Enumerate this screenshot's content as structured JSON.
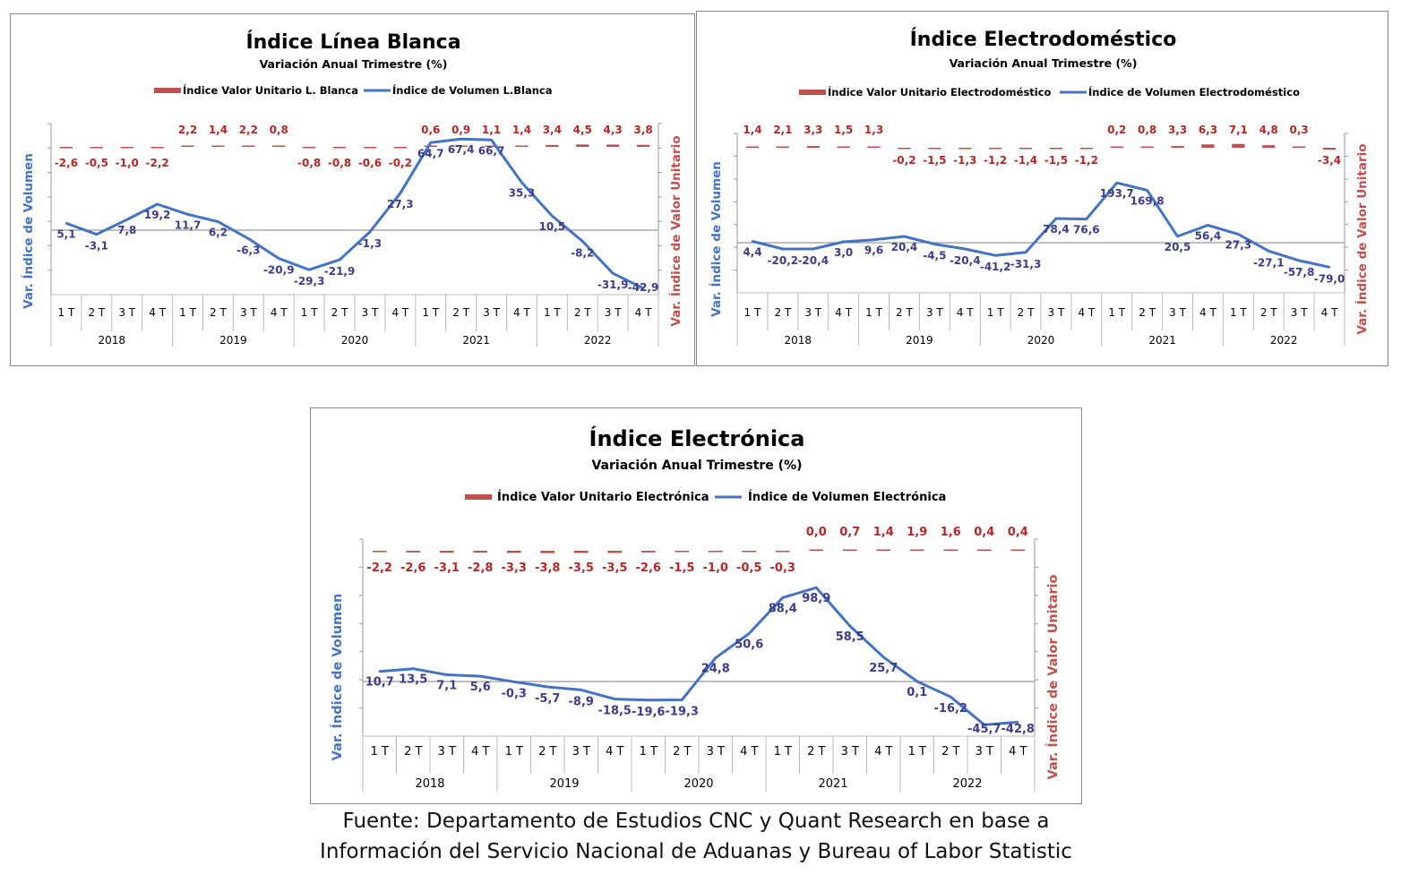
{
  "colors": {
    "volume": "#4472C4",
    "unit_value": "#C0504D",
    "volume_label": "#3C3C8C",
    "unit_label": "#B42828",
    "axis_title_left": "#4472C4",
    "axis_title_right": "#C0504D"
  },
  "chart_data": [
    {
      "type": "line",
      "title": "Índice Línea Blanca",
      "subtitle": "Variación Anual Trimestre  (%)",
      "ylabel": "Var. Índice de Volumen",
      "y2label": "Var. Índice de Valor Unitario",
      "legend": [
        "Índice Valor Unitario L. Blanca",
        "Índice de Volumen L.Blanca"
      ],
      "legend_position": "top",
      "grid": false,
      "quarters": [
        "1 T",
        "2 T",
        "3 T",
        "4 T",
        "1 T",
        "2 T",
        "3 T",
        "4 T",
        "1 T",
        "2 T",
        "3 T",
        "4 T",
        "1 T",
        "2 T",
        "3 T",
        "4 T",
        "1 T",
        "2 T",
        "3 T",
        "4 T"
      ],
      "years": [
        "2018",
        "2019",
        "2020",
        "2021",
        "2022"
      ],
      "series": [
        {
          "name": "Índice de Volumen L.Blanca",
          "axis": "left",
          "values": [
            5.1,
            -3.1,
            7.8,
            19.2,
            11.7,
            6.2,
            -6.3,
            -20.9,
            -29.3,
            -21.9,
            -1.3,
            27.3,
            64.7,
            67.4,
            66.7,
            35.3,
            10.5,
            -8.2,
            -31.9,
            -42.9
          ],
          "labels": [
            "5,1",
            "-3,1",
            "7,8",
            "19,2",
            "11,7",
            "6,2",
            "-6,3",
            "-20,9",
            "-29,3",
            "-21,9",
            "-1,3",
            "27,3",
            "64,7",
            "67,4",
            "66,7",
            "35,3",
            "10,5",
            "-8,2",
            "-31,9",
            "-42,9"
          ]
        },
        {
          "name": "Índice Valor Unitario L. Blanca",
          "axis": "right",
          "values": [
            -2.6,
            -0.5,
            -1.0,
            -2.2,
            2.2,
            1.4,
            2.2,
            0.8,
            -0.8,
            -0.8,
            -0.6,
            -0.2,
            0.6,
            0.9,
            1.1,
            1.4,
            3.4,
            4.5,
            4.3,
            3.8
          ],
          "labels": [
            "-2,6",
            "-0,5",
            "-1,0",
            "-2,2",
            "2,2",
            "1,4",
            "2,2",
            "0,8",
            "-0,8",
            "-0,8",
            "-0,6",
            "-0,2",
            "0,6",
            "0,9",
            "1,1",
            "1,4",
            "3,4",
            "4,5",
            "4,3",
            "3,8"
          ]
        }
      ]
    },
    {
      "type": "line",
      "title": "Índice Electrodoméstico",
      "subtitle": "Variación Anual Trimestre  (%)",
      "ylabel": "Var. Índice de Volumen",
      "y2label": "Var. Índice de Valor Unitario",
      "legend": [
        "Índice Valor Unitario Electrodoméstico",
        "Índice de Volumen Electrodoméstico"
      ],
      "legend_position": "top",
      "grid": false,
      "quarters": [
        "1 T",
        "2 T",
        "3 T",
        "4 T",
        "1 T",
        "2 T",
        "3 T",
        "4 T",
        "1 T",
        "2 T",
        "3 T",
        "4 T",
        "1 T",
        "2 T",
        "3 T",
        "4 T",
        "1 T",
        "2 T",
        "3 T",
        "4 T"
      ],
      "years": [
        "2018",
        "2019",
        "2020",
        "2021",
        "2022"
      ],
      "series": [
        {
          "name": "Índice de Volumen Electrodoméstico",
          "axis": "left",
          "values": [
            4.4,
            -20.2,
            -20.4,
            3.0,
            9.6,
            20.4,
            -4.5,
            -20.4,
            -41.2,
            -31.3,
            78.4,
            76.6,
            193.7,
            169.8,
            20.5,
            56.4,
            27.3,
            -27.1,
            -57.8,
            -79.0
          ],
          "labels": [
            "4,4",
            "-20,2",
            "-20,4",
            "3,0",
            "9,6",
            "20,4",
            "-4,5",
            "-20,4",
            "-41,2",
            "-31,3",
            "78,4",
            "76,6",
            "193,7",
            "169,8",
            "20,5",
            "56,4",
            "27,3",
            "-27,1",
            "-57,8",
            "-79,0"
          ]
        },
        {
          "name": "Índice Valor Unitario Electrodoméstico",
          "axis": "right",
          "values": [
            1.4,
            2.1,
            3.3,
            1.5,
            1.3,
            -0.2,
            -1.5,
            -1.3,
            -1.2,
            -1.4,
            -1.5,
            -1.2,
            0.2,
            0.8,
            3.3,
            6.3,
            7.1,
            4.8,
            0.3,
            -3.4
          ],
          "labels": [
            "1,4",
            "2,1",
            "3,3",
            "1,5",
            "1,3",
            "-0,2",
            "-1,5",
            "-1,3",
            "-1,2",
            "-1,4",
            "-1,5",
            "-1,2",
            "0,2",
            "0,8",
            "3,3",
            "6,3",
            "7,1",
            "4,8",
            "0,3",
            "-3,4"
          ]
        }
      ]
    },
    {
      "type": "line",
      "title": "Índice Electrónica",
      "subtitle": "Variación Anual Trimestre  (%)",
      "ylabel": "Var. Índice de Volumen",
      "y2label": "Var. Índice de Valor Unitario",
      "legend": [
        "Índice Valor Unitario Electrónica",
        "Índice de Volumen Electrónica"
      ],
      "legend_position": "top",
      "grid": false,
      "quarters": [
        "1 T",
        "2 T",
        "3 T",
        "4 T",
        "1 T",
        "2 T",
        "3 T",
        "4 T",
        "1 T",
        "2 T",
        "3 T",
        "4 T",
        "1 T",
        "2 T",
        "3 T",
        "4 T",
        "1 T",
        "2 T",
        "3 T",
        "4 T"
      ],
      "years": [
        "2018",
        "2019",
        "2020",
        "2021",
        "2022"
      ],
      "series": [
        {
          "name": "Índice de Volumen Electrónica",
          "axis": "left",
          "values": [
            10.7,
            13.5,
            7.1,
            5.6,
            -0.3,
            -5.7,
            -8.9,
            -18.5,
            -19.6,
            -19.3,
            24.8,
            50.6,
            88.4,
            98.9,
            58.5,
            25.7,
            0.1,
            -16.2,
            -45.7,
            -42.8
          ],
          "labels": [
            "10,7",
            "13,5",
            "7,1",
            "5,6",
            "-0,3",
            "-5,7",
            "-8,9",
            "-18,5",
            "-19,6",
            "-19,3",
            "24,8",
            "50,6",
            "88,4",
            "98,9",
            "58,5",
            "25,7",
            "0,1",
            "-16,2",
            "-45,7",
            "-42,8"
          ]
        },
        {
          "name": "Índice Valor Unitario Electrónica",
          "axis": "right",
          "values": [
            -2.2,
            -2.6,
            -3.1,
            -2.8,
            -3.3,
            -3.8,
            -3.5,
            -3.5,
            -2.6,
            -1.5,
            -1.0,
            -0.5,
            -0.3,
            0.0,
            0.7,
            1.4,
            1.9,
            1.6,
            0.4,
            0.4
          ],
          "labels": [
            "-2,2",
            "-2,6",
            "-3,1",
            "-2,8",
            "-3,3",
            "-3,8",
            "-3,5",
            "-3,5",
            "-2,6",
            "-1,5",
            "-1,0",
            "-0,5",
            "-0,3",
            "0,0",
            "0,7",
            "1,4",
            "1,9",
            "1,6",
            "0,4",
            "0,4"
          ]
        }
      ]
    }
  ],
  "source": {
    "line1": "Fuente: Departamento de Estudios CNC y Quant Research en base a",
    "line2": "Información del Servicio Nacional de Aduanas y Bureau of Labor Statistic"
  }
}
